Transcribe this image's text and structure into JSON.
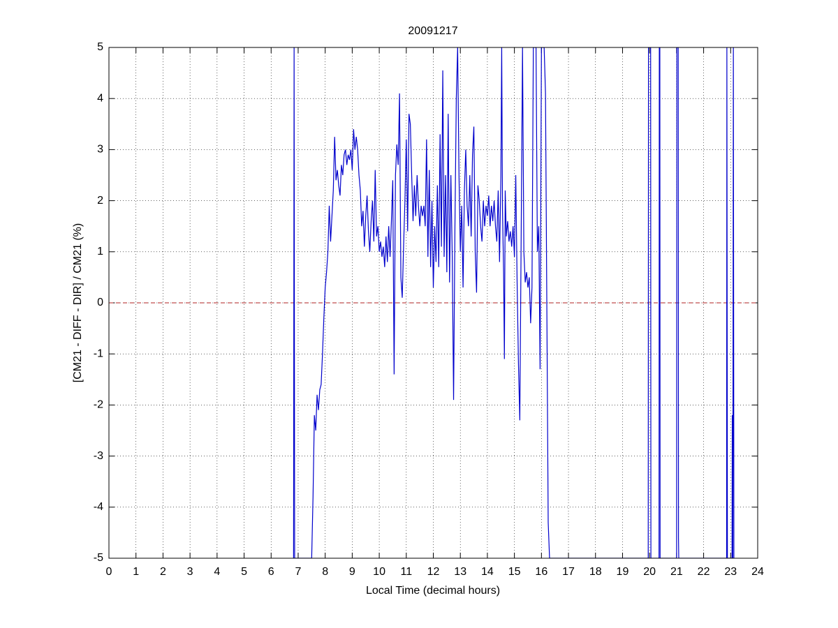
{
  "chart_data": {
    "type": "line",
    "title": "20091217",
    "x_label": "Local Time (decimal hours)",
    "y_label": "[CM21 - DIFF - DIR] / CM21 (%)",
    "xlim": [
      0,
      24
    ],
    "ylim": [
      -5,
      5
    ],
    "xticks": [
      0,
      1,
      2,
      3,
      4,
      5,
      6,
      7,
      8,
      9,
      10,
      11,
      12,
      13,
      14,
      15,
      16,
      17,
      18,
      19,
      20,
      21,
      22,
      23,
      24
    ],
    "yticks": [
      -5,
      -4,
      -3,
      -2,
      -1,
      0,
      1,
      2,
      3,
      4,
      5
    ],
    "grid": true,
    "reference_line": {
      "value": 0,
      "color": "#b22222",
      "style": "dashed"
    },
    "series": [
      {
        "color": "#0000cc",
        "x": [
          6.83,
          6.85,
          6.87,
          7.5,
          7.55,
          7.6,
          7.65,
          7.7,
          7.75,
          7.8,
          7.85,
          7.9,
          7.95,
          8.0,
          8.05,
          8.1,
          8.15,
          8.2,
          8.25,
          8.3,
          8.35,
          8.4,
          8.45,
          8.5,
          8.55,
          8.6,
          8.65,
          8.7,
          8.75,
          8.8,
          8.85,
          8.9,
          8.95,
          9.0,
          9.05,
          9.1,
          9.15,
          9.2,
          9.25,
          9.3,
          9.35,
          9.4,
          9.45,
          9.5,
          9.55,
          9.6,
          9.65,
          9.7,
          9.75,
          9.8,
          9.85,
          9.9,
          9.95,
          10.0,
          10.05,
          10.1,
          10.15,
          10.2,
          10.25,
          10.3,
          10.35,
          10.4,
          10.45,
          10.5,
          10.55,
          10.6,
          10.65,
          10.7,
          10.75,
          10.8,
          10.85,
          10.9,
          10.95,
          11.0,
          11.05,
          11.1,
          11.15,
          11.2,
          11.25,
          11.3,
          11.35,
          11.4,
          11.45,
          11.5,
          11.55,
          11.6,
          11.65,
          11.7,
          11.75,
          11.8,
          11.85,
          11.9,
          11.95,
          12.0,
          12.05,
          12.1,
          12.15,
          12.2,
          12.25,
          12.3,
          12.35,
          12.4,
          12.45,
          12.5,
          12.55,
          12.6,
          12.65,
          12.7,
          12.75,
          12.8,
          12.85,
          12.9,
          12.95,
          13.0,
          13.05,
          13.1,
          13.15,
          13.2,
          13.25,
          13.3,
          13.35,
          13.4,
          13.45,
          13.5,
          13.55,
          13.6,
          13.65,
          13.7,
          13.75,
          13.8,
          13.85,
          13.9,
          13.95,
          14.0,
          14.05,
          14.1,
          14.15,
          14.2,
          14.25,
          14.3,
          14.35,
          14.4,
          14.45,
          14.5,
          14.53,
          14.56,
          14.6,
          14.63,
          14.66,
          14.7,
          14.75,
          14.8,
          14.85,
          14.9,
          14.95,
          15.0,
          15.05,
          15.1,
          15.15,
          15.2,
          15.25,
          15.3,
          15.35,
          15.4,
          15.45,
          15.5,
          15.55,
          15.6,
          15.65,
          15.7,
          15.75,
          15.8,
          15.85,
          15.9,
          15.95,
          16.0,
          16.1,
          16.15,
          16.25,
          16.3,
          19.95,
          19.96,
          20.04,
          20.05,
          20.35,
          20.36,
          20.38,
          20.39,
          21.0,
          21.01,
          21.06,
          21.07,
          21.08,
          22.85,
          22.86,
          22.88,
          23.05,
          23.06,
          23.08,
          23.1,
          23.12
        ],
        "values": [
          -5,
          5,
          -5,
          -5,
          -3.8,
          -2.2,
          -2.5,
          -1.8,
          -2.1,
          -1.7,
          -1.6,
          -1.0,
          -0.3,
          0.3,
          0.6,
          1.0,
          1.9,
          1.2,
          1.7,
          2.2,
          3.25,
          2.4,
          2.6,
          2.3,
          2.1,
          2.7,
          2.5,
          2.9,
          3.0,
          2.7,
          2.9,
          2.8,
          3.0,
          2.6,
          3.4,
          3.0,
          3.25,
          3.0,
          2.5,
          2.2,
          1.5,
          1.8,
          1.1,
          1.7,
          2.1,
          1.4,
          1.0,
          1.6,
          2.0,
          1.2,
          2.6,
          1.3,
          1.5,
          1.0,
          1.2,
          0.9,
          1.1,
          0.7,
          1.3,
          0.8,
          1.5,
          0.9,
          1.6,
          2.4,
          -1.4,
          2.5,
          3.1,
          2.7,
          4.1,
          0.5,
          0.1,
          1.1,
          2.0,
          3.2,
          1.4,
          3.7,
          3.5,
          2.5,
          1.6,
          2.3,
          1.7,
          2.5,
          1.9,
          1.5,
          1.9,
          1.7,
          1.9,
          1.5,
          3.2,
          0.9,
          2.6,
          0.7,
          2.0,
          0.3,
          1.5,
          0.8,
          2.3,
          0.7,
          3.3,
          1.1,
          4.55,
          0.9,
          2.5,
          0.6,
          3.7,
          0.4,
          2.5,
          0.9,
          -1.9,
          1.5,
          4.0,
          5,
          2.5,
          1.0,
          1.9,
          0.3,
          2.2,
          3.0,
          1.9,
          1.5,
          2.5,
          1.3,
          2.9,
          3.45,
          1.0,
          0.2,
          2.3,
          2.0,
          1.5,
          1.2,
          2.0,
          1.5,
          1.9,
          1.7,
          2.1,
          1.5,
          1.9,
          1.6,
          2.0,
          1.5,
          1.2,
          2.2,
          0.8,
          2.5,
          5,
          1.8,
          0.6,
          -1.1,
          2.2,
          1.3,
          1.6,
          1.2,
          1.4,
          1.1,
          1.5,
          0.9,
          2.5,
          0.4,
          -1.2,
          -2.3,
          1.3,
          5,
          1.0,
          0.4,
          0.6,
          0.3,
          0.5,
          -0.4,
          0.3,
          5,
          5,
          5,
          1.0,
          1.5,
          -1.3,
          5,
          5,
          4.1,
          -4.3,
          -5,
          -5,
          5,
          5,
          -5,
          -5,
          5,
          5,
          -5,
          -5,
          5,
          5,
          -4.6,
          -5,
          -5,
          5,
          -5,
          -5,
          -2.2,
          -5,
          5,
          -5
        ]
      }
    ]
  }
}
